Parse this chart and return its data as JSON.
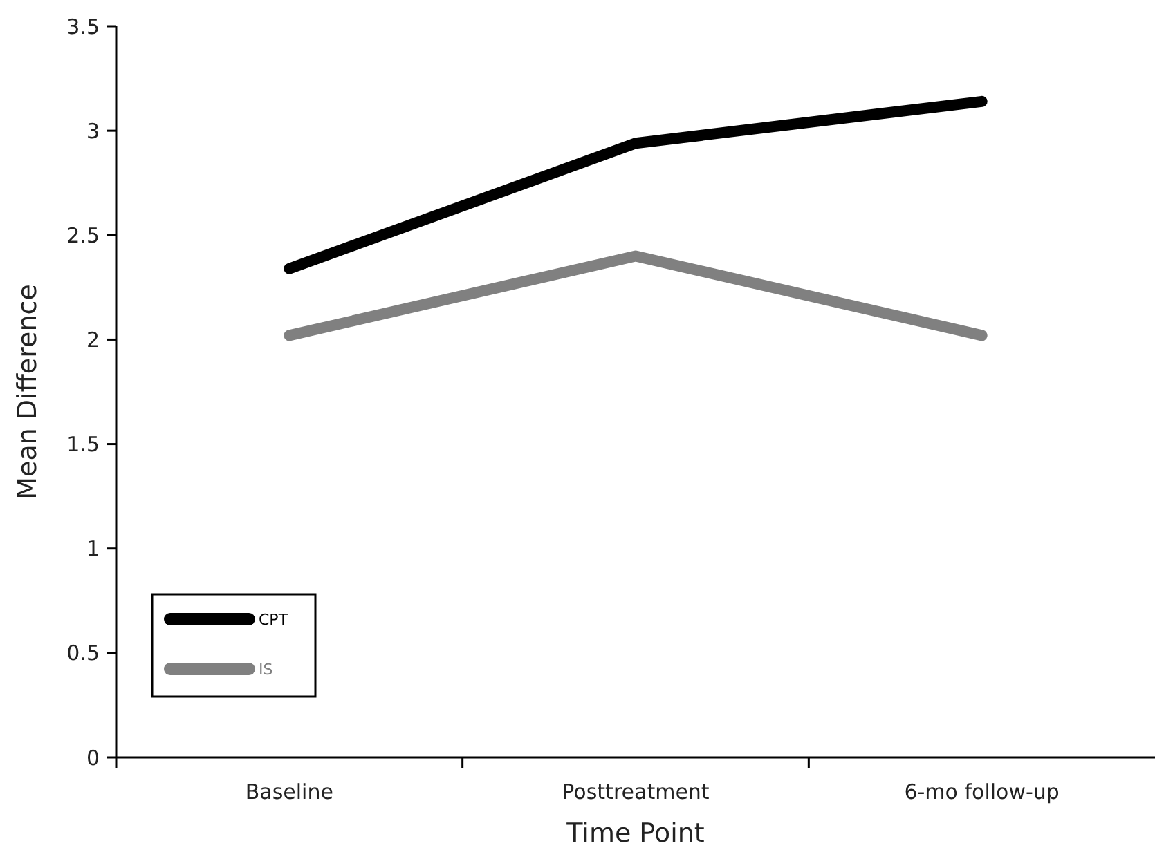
{
  "chart_data": {
    "type": "line",
    "xlabel": "Time Point",
    "ylabel": "Mean Difference",
    "categories": [
      "Baseline",
      "Posttreatment",
      "6-mo follow-up"
    ],
    "series": [
      {
        "name": "CPT",
        "color": "#000000",
        "values": [
          2.34,
          2.94,
          3.14
        ]
      },
      {
        "name": "IS",
        "color": "#808080",
        "values": [
          2.02,
          2.4,
          2.02
        ]
      }
    ],
    "ylim": [
      0,
      3.5
    ],
    "yticks": [
      0,
      0.5,
      1,
      1.5,
      2,
      2.5,
      3,
      3.5
    ],
    "legend": "bottom left",
    "grid": false,
    "marker": "none",
    "line_style": "solid"
  }
}
